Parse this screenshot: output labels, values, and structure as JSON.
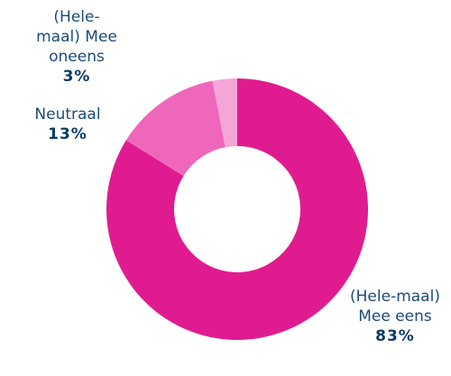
{
  "chart_data": {
    "type": "pie",
    "categories": [
      "(Hele-maal) Mee eens",
      "Neutraal",
      "(Hele-maal) Mee oneens"
    ],
    "values": [
      83,
      13,
      3
    ],
    "value_labels": [
      "83%",
      "13%",
      "3%"
    ],
    "colors": [
      "#e01b8f",
      "#ee67bb",
      "#f5a6d7"
    ]
  }
}
